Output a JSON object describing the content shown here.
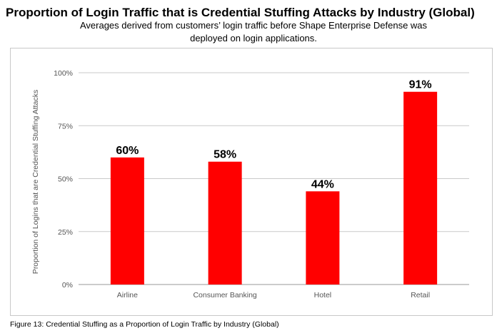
{
  "title": "Proportion of Login Traffic that is Credential Stuffing Attacks by Industry (Global)",
  "subtitle_line1": "Averages derived from customers’ login traffic before Shape Enterprise Defense was",
  "subtitle_line2": "deployed on login applications.",
  "caption": "Figure 13: Credential Stuffing as a Proportion of Login Traffic by Industry (Global)",
  "colors": {
    "bar": "#ff0000",
    "grid": "#c9c9c9",
    "axis_text": "#555555"
  },
  "chart_data": {
    "type": "bar",
    "categories": [
      "Airline",
      "Consumer Banking",
      "Hotel",
      "Retail"
    ],
    "values": [
      60,
      58,
      44,
      91
    ],
    "data_labels": [
      "60%",
      "58%",
      "44%",
      "91%"
    ],
    "ylabel": "Proportion of Logins that are Credential Stuffing Attacks",
    "xlabel": "",
    "ylim": [
      0,
      100
    ],
    "yticks": [
      0,
      25,
      50,
      75,
      100
    ],
    "ytick_labels": [
      "0%",
      "25%",
      "50%",
      "75%",
      "100%"
    ],
    "grid": true,
    "legend": "none"
  }
}
